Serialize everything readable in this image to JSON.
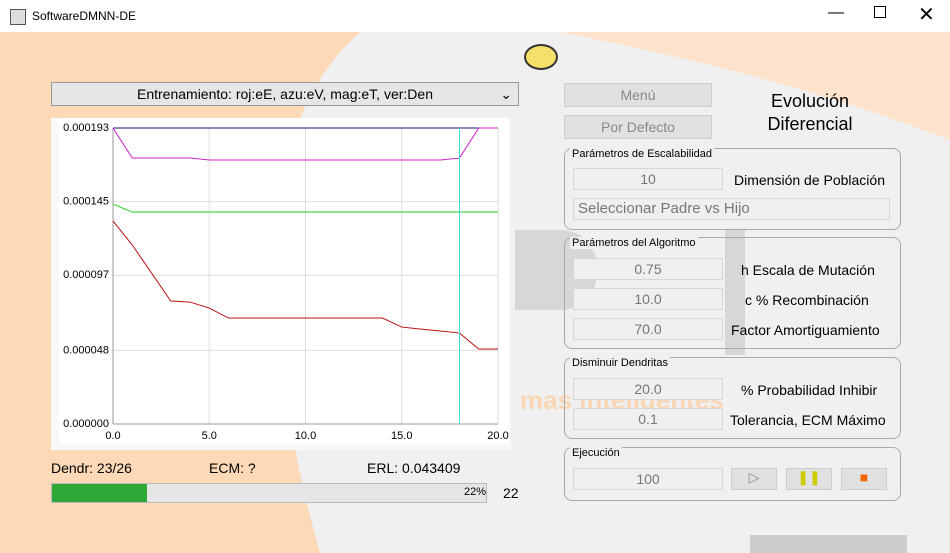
{
  "window": {
    "title": "SoftwareDMNN-DE"
  },
  "watermark": "mas inteligentes",
  "dropdown": "Entrenamiento: roj:eE, azu:eV, mag:eT, ver:Den",
  "chart_data": {
    "type": "line",
    "x": [
      0,
      1,
      2,
      3,
      4,
      5,
      6,
      7,
      8,
      9,
      10,
      11,
      12,
      13,
      14,
      15,
      16,
      17,
      18,
      19,
      20
    ],
    "xlim": [
      0,
      20
    ],
    "xticks": [
      {
        "value": 0,
        "label": "0.0"
      },
      {
        "value": 5,
        "label": "5.0"
      },
      {
        "value": 10,
        "label": "10.0"
      },
      {
        "value": 15,
        "label": "15.0"
      },
      {
        "value": 20,
        "label": "20.0"
      }
    ],
    "ylim": [
      0,
      0.000193
    ],
    "yticks": [
      {
        "value": 0,
        "label": "0.000000"
      },
      {
        "value": 4.8e-05,
        "label": "0.000048"
      },
      {
        "value": 9.7e-05,
        "label": "0.000097"
      },
      {
        "value": 0.000145,
        "label": "0.000145"
      },
      {
        "value": 0.000193,
        "label": "0.000193"
      }
    ],
    "grid": true,
    "cursor_x": 18,
    "cursor_color": "#40e0e0",
    "series": [
      {
        "color": "#1a1a80",
        "values": [
          0.000193,
          0.000193,
          0.000193,
          0.000193,
          0.000193,
          0.000193,
          0.000193,
          0.000193,
          0.000193,
          0.000193,
          0.000193,
          0.000193,
          0.000193,
          0.000193,
          0.000193,
          0.000193,
          0.000193,
          0.000193,
          0.000193,
          0.000193,
          0.000193
        ]
      },
      {
        "color": "#cc22cc",
        "values": [
          0.000193,
          0.0001734,
          0.0001734,
          0.0001734,
          0.0001734,
          0.0001721,
          0.0001721,
          0.0001721,
          0.0001721,
          0.0001721,
          0.0001721,
          0.0001721,
          0.0001721,
          0.0001721,
          0.0001721,
          0.0001721,
          0.0001721,
          0.0001721,
          0.0001734,
          0.000193,
          0.000193
        ]
      },
      {
        "color": "#22cc22",
        "values": [
          0.0001434,
          0.0001382,
          0.0001382,
          0.0001382,
          0.0001382,
          0.0001382,
          0.0001382,
          0.0001382,
          0.0001382,
          0.0001382,
          0.0001382,
          0.0001382,
          0.0001382,
          0.0001382,
          0.0001382,
          0.0001382,
          0.0001382,
          0.0001382,
          0.0001382,
          0.0001382,
          0.0001382
        ]
      },
      {
        "color": "#bb1111",
        "values": [
          0.0001324,
          0.0001167,
          9.85e-05,
          8.02e-05,
          7.95e-05,
          7.56e-05,
          6.91e-05,
          6.91e-05,
          6.91e-05,
          6.91e-05,
          6.91e-05,
          6.91e-05,
          6.91e-05,
          6.91e-05,
          6.91e-05,
          6.32e-05,
          6.19e-05,
          6.06e-05,
          5.93e-05,
          4.89e-05,
          4.89e-05
        ]
      }
    ]
  },
  "buttons": {
    "menu": "Menú",
    "defaults": "Por Defecto"
  },
  "heading": [
    "Evolución",
    "Diferencial"
  ],
  "groups": [
    {
      "title": "Parámetros de Escalabilidad",
      "fields": [
        {
          "value": "10",
          "label": "Dimensión de Población"
        }
      ],
      "select": "Seleccionar Padre vs Hijo"
    },
    {
      "title": "Parámetros del Algoritmo",
      "fields": [
        {
          "value": "0.75",
          "label": "h Escala de Mutación"
        },
        {
          "value": "10.0",
          "label": "c % Recombinación"
        },
        {
          "value": "70.0",
          "label": "Factor Amortiguamiento"
        }
      ]
    },
    {
      "title": "Disminuir Dendritas",
      "fields": [
        {
          "value": "20.0",
          "label": "% Probabilidad Inhibir"
        },
        {
          "value": "0.1",
          "label": "Tolerancia, ECM Máximo"
        }
      ]
    },
    {
      "title": "Ejecución",
      "fields": [
        {
          "value": "100"
        }
      ]
    }
  ],
  "status": {
    "dendr": "Dendr: 23/26",
    "ecm": "ECM: ?",
    "erl": "ERL: 0.043409"
  },
  "progress": {
    "value": 22,
    "value_label": "22%",
    "count": "22"
  }
}
